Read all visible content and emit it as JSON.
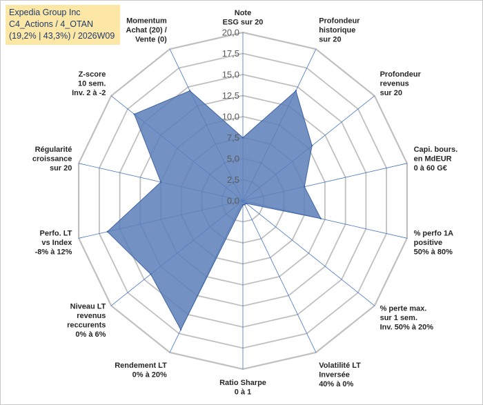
{
  "header": {
    "company": "Expedia Group Inc",
    "category": "C4_Actions / 4_OTAN",
    "details": "(19,2% | 43,3%) / 2026W09"
  },
  "chart_data": {
    "type": "radar",
    "rmax": 20,
    "ticks": [
      "0,0",
      "2,5",
      "5,0",
      "7,5",
      "10,0",
      "12,5",
      "15,0",
      "17,5",
      "20,0"
    ],
    "axes": [
      {
        "label": [
          "Note",
          "ESG sur 20"
        ],
        "value": 7.5
      },
      {
        "label": [
          "Profondeur",
          "historique",
          "sur 20"
        ],
        "value": 14.5
      },
      {
        "label": [
          "Profondeur",
          "revenus",
          "sur 20"
        ],
        "value": 10.5
      },
      {
        "label": [
          "Capi. bours.",
          "en MdEUR",
          "0 à 60 G€"
        ],
        "value": 7.5
      },
      {
        "label": [
          "% perfo 1A",
          "positive",
          "50% à 80%"
        ],
        "value": 9.5
      },
      {
        "label": [
          "% perte max.",
          "sur 1 sem.",
          "Inv. 50% à 20%"
        ],
        "value": 0.5
      },
      {
        "label": [
          "Volatilité LT",
          "Inversée",
          "40% à 0%"
        ],
        "value": 0.5
      },
      {
        "label": [
          "Ratio Sharpe",
          "0 à 1"
        ],
        "value": 0.5
      },
      {
        "label": [
          "Rendement LT",
          "0% à 20%"
        ],
        "value": 17.0
      },
      {
        "label": [
          "Niveau LT",
          "revenus",
          "reccurents",
          "0% à 6%"
        ],
        "value": 14.0
      },
      {
        "label": [
          "Perfo. LT",
          "vs Index",
          "-8% à 12%"
        ],
        "value": 16.5
      },
      {
        "label": [
          "Régularité",
          "croissance",
          "sur 20"
        ],
        "value": 10.0
      },
      {
        "label": [
          "Z-score",
          "10 sem.",
          "Inv. 2 à -2"
        ],
        "value": 16.5
      },
      {
        "label": [
          "Momentum",
          "Achat (20) /",
          "Vente (0)"
        ],
        "value": 14.5
      }
    ],
    "colors": {
      "fill": "#5a7fb8",
      "stroke": "#3f63a0",
      "grid": "#bfbfbf",
      "spoke": "#4472c4"
    }
  }
}
